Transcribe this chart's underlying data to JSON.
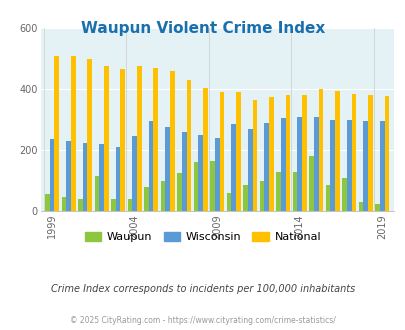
{
  "title": "Waupun Violent Crime Index",
  "subtitle": "Crime Index corresponds to incidents per 100,000 inhabitants",
  "footer": "© 2025 CityRating.com - https://www.cityrating.com/crime-statistics/",
  "years": [
    1999,
    2000,
    2001,
    2002,
    2003,
    2004,
    2005,
    2006,
    2007,
    2008,
    2009,
    2010,
    2011,
    2012,
    2013,
    2014,
    2015,
    2016,
    2017,
    2018,
    2019
  ],
  "waupun": [
    55,
    45,
    40,
    115,
    40,
    40,
    80,
    100,
    125,
    160,
    165,
    60,
    85,
    100,
    130,
    130,
    180,
    85,
    110,
    30,
    25
  ],
  "wisconsin": [
    235,
    230,
    225,
    220,
    210,
    245,
    295,
    275,
    260,
    250,
    240,
    285,
    270,
    290,
    305,
    310,
    310,
    300,
    300,
    295,
    295
  ],
  "national": [
    510,
    510,
    500,
    475,
    465,
    475,
    470,
    460,
    430,
    405,
    390,
    390,
    365,
    375,
    380,
    380,
    400,
    395,
    385,
    380,
    378
  ],
  "xtick_labels": [
    "1999",
    "2004",
    "2009",
    "2014",
    "2019"
  ],
  "xtick_positions": [
    0,
    5,
    10,
    15,
    20
  ],
  "ylim": [
    0,
    600
  ],
  "yticks": [
    0,
    200,
    400,
    600
  ],
  "bar_width": 0.28,
  "colors": {
    "waupun": "#8dc63f",
    "wisconsin": "#5b9bd5",
    "national": "#ffc000"
  },
  "bg_color": "#e4f1f5",
  "title_color": "#1a6fad",
  "subtitle_color": "#444444",
  "footer_color": "#999999",
  "grid_color": "#ffffff",
  "legend_labels": [
    "Waupun",
    "Wisconsin",
    "National"
  ]
}
